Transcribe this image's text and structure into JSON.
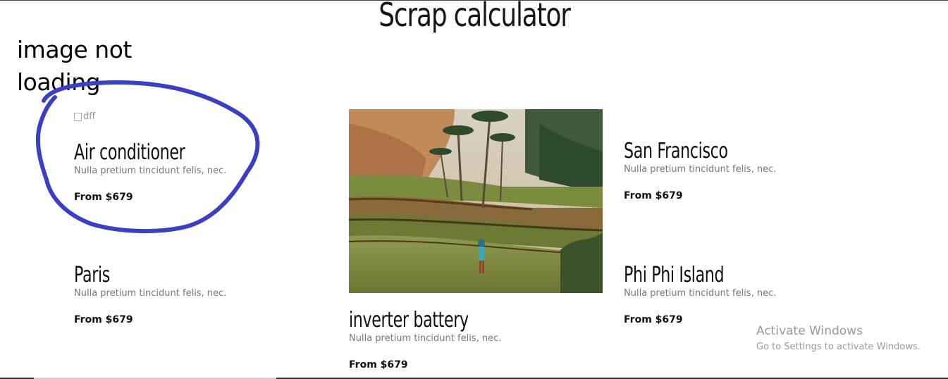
{
  "page": {
    "title": "Scrap calculator"
  },
  "annotation": {
    "text": "image not loading",
    "stroke_color": "#3b3fc4"
  },
  "cards": [
    {
      "id": "air-conditioner",
      "image_alt": "dff",
      "title": "Air conditioner",
      "description": "Nulla pretium tincidunt felis, nec.",
      "price": "From $679"
    },
    {
      "id": "san-francisco",
      "title": "San Francisco",
      "description": "Nulla pretium tincidunt felis, nec.",
      "price": "From $679"
    },
    {
      "id": "paris",
      "title": "Paris",
      "description": "Nulla pretium tincidunt felis, nec.",
      "price": "From $679"
    },
    {
      "id": "inverter-battery",
      "title": "inverter battery",
      "description": "Nulla pretium tincidunt felis, nec.",
      "price": "From $679"
    },
    {
      "id": "phi-phi-island",
      "title": "Phi Phi Island",
      "description": "Nulla pretium tincidunt felis, nec.",
      "price": "From $679"
    }
  ],
  "watermark": {
    "title": "Activate Windows",
    "subtitle": "Go to Settings to activate Windows."
  },
  "colors": {
    "text": "#111111",
    "muted": "#777777",
    "annotation": "#3b3fc4",
    "watermark": "#9a9a9a"
  }
}
